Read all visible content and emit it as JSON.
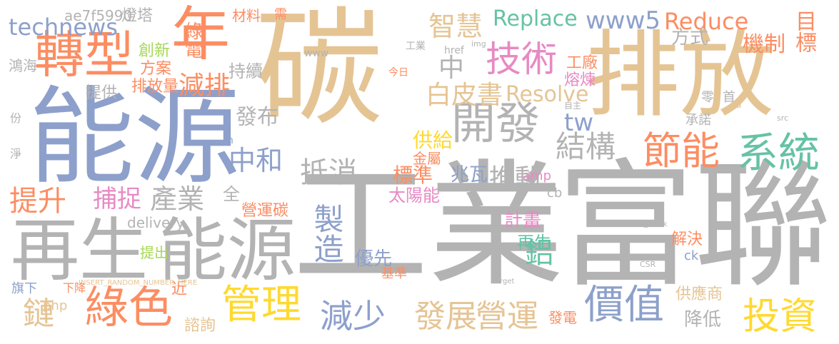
{
  "palette": {
    "background": "#ffffff",
    "gray": "#a6a6a6",
    "tan": "#e5c494",
    "blue": "#8da0cb",
    "orange": "#fc8d62",
    "teal": "#66c2a5",
    "pink": "#e78ac3",
    "green": "#a6d854",
    "yellow": "#ffd92f"
  },
  "words": [
    {
      "text": "碳",
      "color": "#e5c494"
    },
    {
      "text": "工業",
      "color": "#b3b3b3"
    },
    {
      "text": "富聯",
      "color": "#b3b3b3"
    },
    {
      "text": "能源",
      "color": "#8da0cb"
    },
    {
      "text": "排放",
      "color": "#e5c494"
    },
    {
      "text": "再生",
      "color": "#b3b3b3"
    },
    {
      "text": "能源",
      "color": "#b3b3b3"
    },
    {
      "text": "轉型",
      "color": "#fc8d62"
    },
    {
      "text": "年",
      "color": "#fc8d62"
    },
    {
      "text": "開發",
      "color": "#b3b3b3"
    },
    {
      "text": "綠色",
      "color": "#fc8d62"
    },
    {
      "text": "管理",
      "color": "#ffd92f"
    },
    {
      "text": "價值",
      "color": "#8da0cb"
    },
    {
      "text": "技術",
      "color": "#e78ac3"
    },
    {
      "text": "節能",
      "color": "#fc8d62"
    },
    {
      "text": "系統",
      "color": "#66c2a5"
    },
    {
      "text": "結構",
      "color": "#b3b3b3"
    },
    {
      "text": "減少",
      "color": "#8da0cb"
    },
    {
      "text": "發展",
      "color": "#e5c494"
    },
    {
      "text": "營運",
      "color": "#e5c494"
    },
    {
      "text": "投資",
      "color": "#ffd92f"
    },
    {
      "text": "中和",
      "color": "#8da0cb"
    },
    {
      "text": "抵消",
      "color": "#b3b3b3"
    },
    {
      "text": "推動",
      "color": "#b3b3b3"
    },
    {
      "text": "提升",
      "color": "#fc8d62"
    },
    {
      "text": "鏈",
      "color": "#e5c494"
    },
    {
      "text": "智慧",
      "color": "#e5c494"
    },
    {
      "text": "technews",
      "color": "#8da0cb"
    },
    {
      "text": "Replace",
      "color": "#66c2a5"
    },
    {
      "text": "Reduce",
      "color": "#fc8d62"
    },
    {
      "text": "www5",
      "color": "#8da0cb"
    },
    {
      "text": "Resolve",
      "color": "#e5c494"
    },
    {
      "text": "白皮書",
      "color": "#e5c494"
    },
    {
      "text": "減排",
      "color": "#fc8d62"
    },
    {
      "text": "目標",
      "color": "#fc8d62"
    },
    {
      "text": "機制",
      "color": "#fc8d62"
    },
    {
      "text": "方式",
      "color": "#b3b3b3"
    },
    {
      "text": "中",
      "color": "#b3b3b3"
    },
    {
      "text": "製造",
      "color": "#8da0cb"
    },
    {
      "text": "產業",
      "color": "#b3b3b3"
    },
    {
      "text": "捕捉",
      "color": "#e78ac3"
    },
    {
      "text": "發布",
      "color": "#b3b3b3"
    },
    {
      "text": "綠電",
      "color": "#fc8d62"
    },
    {
      "text": "供給",
      "color": "#ffd92f"
    },
    {
      "text": "標準",
      "color": "#fc8d62"
    },
    {
      "text": "兆瓦",
      "color": "#8da0cb"
    },
    {
      "text": "鋁",
      "color": "#66c2a5"
    },
    {
      "text": "tw",
      "color": "#8da0cb"
    },
    {
      "text": "ae7f5990",
      "color": "#b3b3b3"
    },
    {
      "text": "燈塔",
      "color": "#b3b3b3"
    },
    {
      "text": "材料",
      "color": "#fc8d62"
    },
    {
      "text": "需",
      "color": "#fc8d62"
    },
    {
      "text": "工廠",
      "color": "#fc8d62"
    },
    {
      "text": "創新",
      "color": "#a6d854"
    },
    {
      "text": "方案",
      "color": "#fc8d62"
    },
    {
      "text": "排放量",
      "color": "#fc8d62"
    },
    {
      "text": "持續",
      "color": "#b3b3b3"
    },
    {
      "text": "提供",
      "color": "#b3b3b3"
    },
    {
      "text": "熔煉",
      "color": "#e78ac3"
    },
    {
      "text": "全",
      "color": "#b3b3b3"
    },
    {
      "text": "營運碳",
      "color": "#fc8d62"
    },
    {
      "text": "太陽能",
      "color": "#e78ac3"
    },
    {
      "text": "計畫",
      "color": "#e78ac3"
    },
    {
      "text": "再生",
      "color": "#66c2a5"
    },
    {
      "text": "優先",
      "color": "#8da0cb"
    },
    {
      "text": "解決",
      "color": "#fc8d62"
    },
    {
      "text": "供應商",
      "color": "#e5c494"
    },
    {
      "text": "降低",
      "color": "#b3b3b3"
    },
    {
      "text": "發電",
      "color": "#fc8d62"
    },
    {
      "text": "諮詢",
      "color": "#e5c494"
    },
    {
      "text": "php",
      "color": "#e5c494"
    },
    {
      "text": "近",
      "color": "#fc8d62"
    },
    {
      "text": "提出",
      "color": "#a6d854"
    },
    {
      "text": "delivery",
      "color": "#b3b3b3"
    },
    {
      "text": "金屬",
      "color": "#fc8d62"
    },
    {
      "text": "承諾",
      "color": "#b3b3b3"
    },
    {
      "text": "amp",
      "color": "#e78ac3"
    },
    {
      "text": "cb",
      "color": "#b3b3b3"
    },
    {
      "text": "ck",
      "color": "#8da0cb"
    },
    {
      "text": "基準",
      "color": "#fc8d62"
    },
    {
      "text": "鴻海",
      "color": "#b3b3b3"
    },
    {
      "text": "旗下",
      "color": "#8da0cb"
    },
    {
      "text": "下降",
      "color": "#fc8d62"
    },
    {
      "text": "零",
      "color": "#b3b3b3"
    },
    {
      "text": "首",
      "color": "#b3b3b3"
    },
    {
      "text": "份",
      "color": "#b3b3b3"
    },
    {
      "text": "淨",
      "color": "#b3b3b3"
    },
    {
      "text": "href",
      "color": "#b3b3b3"
    },
    {
      "text": "www",
      "color": "#b3b3b3"
    },
    {
      "text": "今日",
      "color": "#fc8d62"
    },
    {
      "text": "n",
      "color": "#8da0cb"
    },
    {
      "text": "工業",
      "color": "#b3b3b3"
    },
    {
      "text": "自主",
      "color": "#b3b3b3"
    },
    {
      "text": "CSR",
      "color": "#b3b3b3"
    },
    {
      "text": "INSERT_RANDOM_NUMBER_HERE",
      "color": "#e5c494"
    },
    {
      "text": "target",
      "color": "#b3b3b3"
    },
    {
      "text": "_blank",
      "color": "#b3b3b3"
    },
    {
      "text": "src",
      "color": "#b3b3b3"
    },
    {
      "text": "img",
      "color": "#b3b3b3"
    },
    {
      "text": "a",
      "color": "#e5c494"
    }
  ]
}
